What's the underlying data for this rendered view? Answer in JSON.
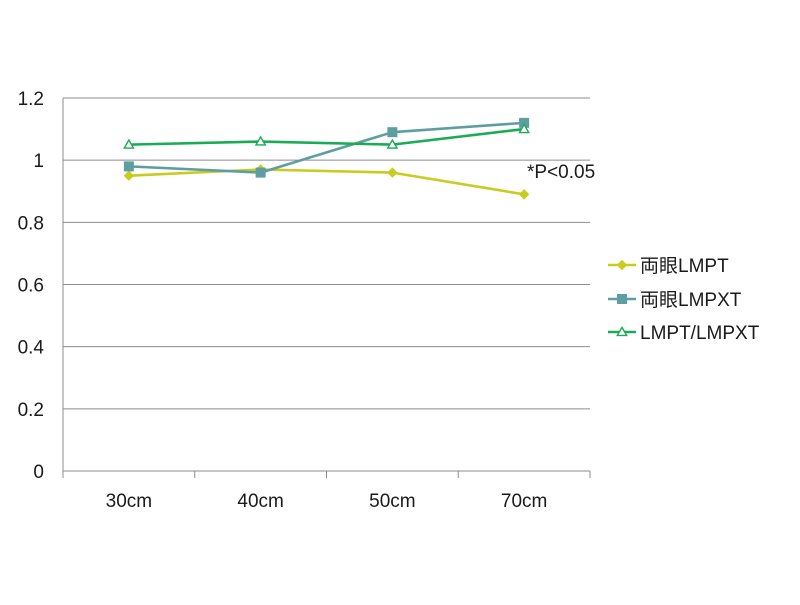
{
  "chart_data": {
    "type": "line",
    "categories": [
      "30cm",
      "40cm",
      "50cm",
      "70cm"
    ],
    "ylim": [
      0,
      1.2
    ],
    "yticks": [
      "0",
      "0.2",
      "0.4",
      "0.6",
      "0.8",
      "1",
      "1.2"
    ],
    "ytick_values": [
      0,
      0.2,
      0.4,
      0.6,
      0.8,
      1.0,
      1.2
    ],
    "grid": true,
    "legend_position": "right",
    "annotation": "*P<0.05",
    "series": [
      {
        "name": "両眼LMPT",
        "values": [
          0.95,
          0.97,
          0.96,
          0.89
        ],
        "color": "#c8cc1e",
        "marker": "diamond"
      },
      {
        "name": "両眼LMPXT",
        "values": [
          0.98,
          0.96,
          1.09,
          1.12
        ],
        "color": "#5e9ea0",
        "marker": "square"
      },
      {
        "name": "LMPT/LMPXT",
        "values": [
          1.05,
          1.06,
          1.05,
          1.1
        ],
        "color": "#1aab57",
        "marker": "triangle-open"
      }
    ]
  }
}
